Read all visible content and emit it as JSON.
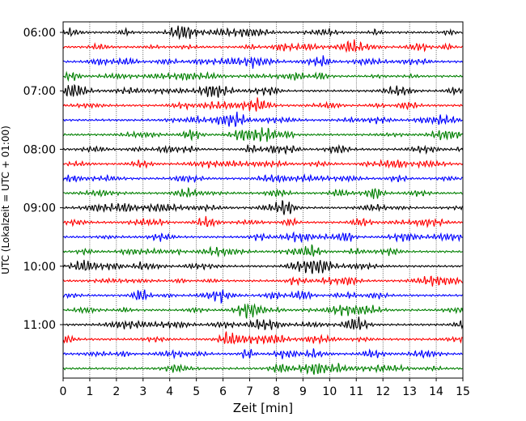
{
  "chart_data": {
    "type": "line",
    "title": "",
    "xlabel": "Zeit  [min]",
    "ylabel": "UTC (Lokalzeit = UTC + 01:00)",
    "xlim": [
      0,
      15
    ],
    "x_ticks": [
      "0",
      "1",
      "2",
      "3",
      "4",
      "5",
      "6",
      "7",
      "8",
      "9",
      "10",
      "11",
      "12",
      "13",
      "14",
      "15"
    ],
    "y_tick_labels": [
      "06:00",
      "07:00",
      "08:00",
      "09:00",
      "10:00",
      "11:00"
    ],
    "grid": "vertical dotted lines at each minute",
    "trace_interval_min": 15,
    "trace_start": "06:00",
    "trace_labels": [
      "06:00",
      "06:15",
      "06:30",
      "06:45",
      "07:00",
      "07:15",
      "07:30",
      "07:45",
      "08:00",
      "08:15",
      "08:30",
      "08:45",
      "09:00",
      "09:15",
      "09:30",
      "09:45",
      "10:00",
      "10:15",
      "10:30",
      "10:45",
      "11:00",
      "11:15",
      "11:30",
      "11:45"
    ],
    "series_colors": [
      "#000000",
      "#ff0000",
      "#0000ff",
      "#008000"
    ]
  }
}
